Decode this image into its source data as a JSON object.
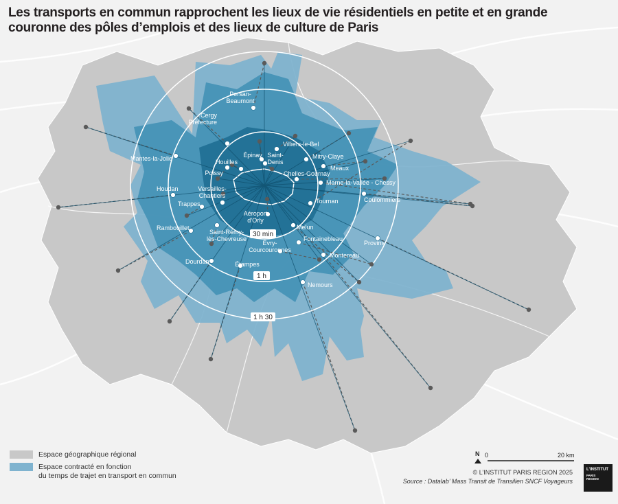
{
  "title": "Les transports en commun rapprochent les lieux de vie résidentiels en petite et en grande couronne des pôles d’emplois et des lieux de culture de Paris",
  "rings": [
    {
      "label": "30 min"
    },
    {
      "label": "1 h"
    },
    {
      "label": "1 h 30"
    }
  ],
  "places": [
    {
      "name": "Persan-\nBeaumont"
    },
    {
      "name": "Cergy\nPréfecture"
    },
    {
      "name": "Mantes-la-Jolie"
    },
    {
      "name": "Épinay"
    },
    {
      "name": "Villiers-le-Bel"
    },
    {
      "name": "Houilles"
    },
    {
      "name": "Saint-\nDenis"
    },
    {
      "name": "Mitry-Claye"
    },
    {
      "name": "Poissy"
    },
    {
      "name": "Meaux"
    },
    {
      "name": "Chelles-Gournay"
    },
    {
      "name": "Houdan"
    },
    {
      "name": "Versailles-\nChantiers"
    },
    {
      "name": "Marne-la-Vallée - Chessy"
    },
    {
      "name": "Trappes"
    },
    {
      "name": "Coulommiers"
    },
    {
      "name": "Tournan"
    },
    {
      "name": "Aéroport\nd’Orly"
    },
    {
      "name": "Rambouillet"
    },
    {
      "name": "Saint-Rémy-\nlès-Chevreuse"
    },
    {
      "name": "Melun"
    },
    {
      "name": "Fontainebleau"
    },
    {
      "name": "Provins"
    },
    {
      "name": "Évry-\nCourcouronnes"
    },
    {
      "name": "Dourdan"
    },
    {
      "name": "Montereau"
    },
    {
      "name": "Étampes"
    },
    {
      "name": "Nemours"
    }
  ],
  "legend": [
    {
      "label": "Espace géographique régional",
      "color": "#c8c8c8"
    },
    {
      "label": "Espace contracté en fonction\ndu temps de trajet en transport en commun",
      "color": "#7fb3cf"
    }
  ],
  "scale": {
    "start": "0",
    "end": "20 km",
    "north": "N"
  },
  "credits": {
    "copyright": "© L’INSTITUT PARIS REGION 2025",
    "source": "Source : Datalab’ Mass Transit de Transilien SNCF Voyageurs"
  },
  "logo": {
    "line1": "L’INSTITUT",
    "line2": "PARIS",
    "line3": "REGION"
  },
  "colors": {
    "region": "#c8c8c8",
    "contracted_light": "#7fb3cf",
    "contracted_mid": "#3f8fb4",
    "contracted_dark": "#1f6e93",
    "ring": "#ffffff"
  }
}
